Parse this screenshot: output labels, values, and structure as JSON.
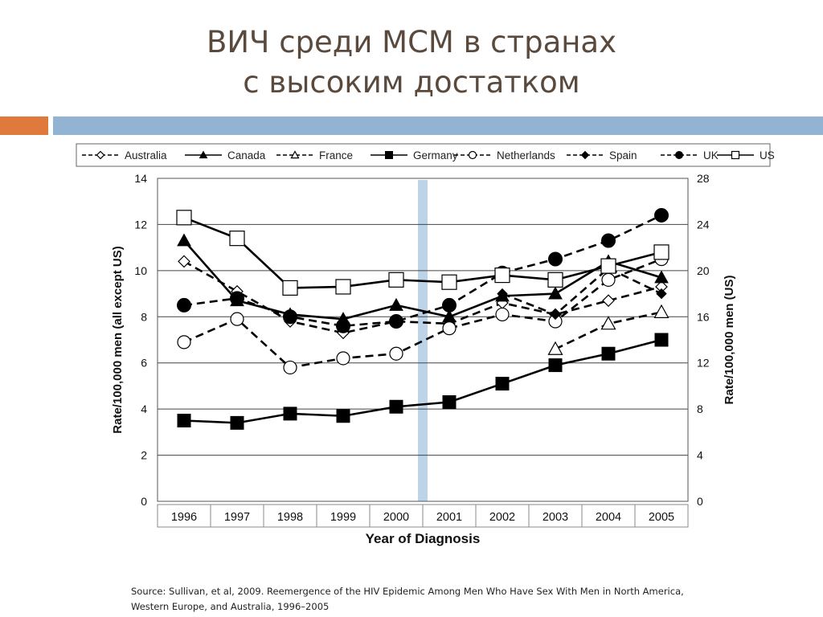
{
  "slide": {
    "title_line1": "ВИЧ среди МСМ в странах",
    "title_line2": "с высоким достатком",
    "source": "Source: Sullivan, et al, 2009.  Reemergence of the HIV Epidemic Among Men Who Have Sex With Men in North America, Western Europe, and Australia, 1996–2005",
    "colors": {
      "accent_orange": "#e07a3c",
      "accent_blue": "#93b3d3",
      "highlight_band": "#bcd3e8",
      "title": "#5a4a3e"
    }
  },
  "chart_data": {
    "type": "line",
    "xlabel": "Year of Diagnosis",
    "ylabel": "Rate/100,000 men (all except US)",
    "ylabel_right": "Rate/100,000 men (US)",
    "ylim": [
      0,
      14
    ],
    "ylim_right": [
      0,
      28
    ],
    "yticks": [
      0,
      2,
      4,
      6,
      8,
      10,
      12,
      14
    ],
    "yticks_right": [
      0,
      4,
      8,
      12,
      16,
      20,
      24,
      28
    ],
    "categories": [
      "1996",
      "1997",
      "1998",
      "1999",
      "2000",
      "2001",
      "2002",
      "2003",
      "2004",
      "2005"
    ],
    "highlight_between": [
      "2000",
      "2001"
    ],
    "grid": "horizontal",
    "legend_position": "top",
    "series": [
      {
        "name": "Australia",
        "axis": "left",
        "line": "dashed",
        "marker": "diamond-open",
        "values": [
          10.4,
          9.1,
          7.8,
          7.3,
          7.8,
          7.7,
          8.6,
          8.1,
          8.7,
          9.3
        ]
      },
      {
        "name": "Canada",
        "axis": "left",
        "line": "solid",
        "marker": "triangle-filled",
        "values": [
          11.3,
          8.7,
          8.1,
          7.9,
          8.5,
          8.0,
          8.9,
          9.0,
          10.4,
          9.7
        ]
      },
      {
        "name": "France",
        "axis": "left",
        "line": "dashed",
        "marker": "triangle-open",
        "values": [
          null,
          null,
          null,
          null,
          null,
          null,
          null,
          6.6,
          7.7,
          8.2
        ]
      },
      {
        "name": "Germany",
        "axis": "left",
        "line": "solid",
        "marker": "square-filled",
        "values": [
          3.5,
          3.4,
          3.8,
          3.7,
          4.1,
          4.3,
          5.1,
          5.9,
          6.4,
          7.0
        ]
      },
      {
        "name": "Netherlands",
        "axis": "left",
        "line": "dashed",
        "marker": "circle-open",
        "values": [
          6.9,
          7.9,
          5.8,
          6.2,
          6.4,
          7.5,
          8.1,
          7.8,
          9.6,
          10.5
        ]
      },
      {
        "name": "Spain",
        "axis": "left",
        "line": "dashed",
        "marker": "diamond-filled",
        "values": [
          null,
          null,
          null,
          null,
          null,
          null,
          9.0,
          8.1,
          10.1,
          9.0
        ]
      },
      {
        "name": "UK",
        "axis": "left",
        "line": "dashed",
        "marker": "circle-filled",
        "values": [
          8.5,
          8.8,
          8.0,
          7.6,
          7.8,
          8.5,
          9.9,
          10.5,
          11.3,
          12.4
        ]
      },
      {
        "name": "US",
        "axis": "right",
        "line": "solid",
        "marker": "square-open",
        "values": [
          24.6,
          22.8,
          18.5,
          18.6,
          19.2,
          19.0,
          19.6,
          19.2,
          20.4,
          21.6
        ]
      }
    ]
  }
}
